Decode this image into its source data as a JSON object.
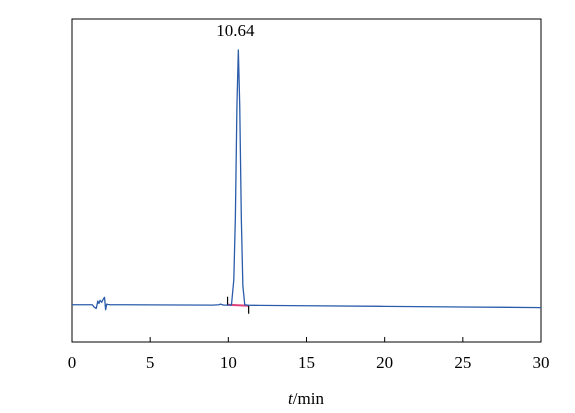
{
  "chart_data": {
    "type": "line",
    "title": "",
    "xlabel_italic": "t",
    "xlabel_rest": "/min",
    "ylabel": "",
    "xlim": [
      0,
      30
    ],
    "x_ticks": [
      0,
      5,
      10,
      15,
      20,
      25,
      30
    ],
    "x_tick_labels": [
      "0",
      "5",
      "10",
      "15",
      "20",
      "25",
      "30"
    ],
    "y_ticks_shown": false,
    "grid": false,
    "legend": "none",
    "series": [
      {
        "color": "#2a5caa",
        "x": [
          0.0,
          1.3,
          1.42,
          1.55,
          1.65,
          1.72,
          1.8,
          1.9,
          2.0,
          2.08,
          2.15,
          2.22,
          2.3,
          2.45,
          2.6,
          5.0,
          9.0,
          9.4,
          9.5,
          9.6,
          9.7,
          9.9,
          10.2,
          10.35,
          10.45,
          10.55,
          10.64,
          10.73,
          10.83,
          10.93,
          11.05,
          11.3,
          12.0,
          15.0,
          20.0,
          25.0,
          30.0
        ],
        "y": [
          0.0,
          0.0,
          -2.0,
          -3.0,
          3.0,
          1.0,
          3.5,
          2.0,
          4.5,
          6.0,
          -4.0,
          0.5,
          0.2,
          0.0,
          0.0,
          -0.1,
          -0.3,
          0.0,
          0.5,
          0.1,
          -0.3,
          -0.3,
          -0.3,
          20.0,
          70.0,
          160.0,
          205.0,
          160.0,
          70.0,
          15.0,
          0.0,
          -0.4,
          -0.5,
          -0.8,
          -1.3,
          -1.8,
          -2.3
        ]
      }
    ],
    "ylim": [
      -30,
      230
    ],
    "annotations": [
      {
        "text": "10.64",
        "x": 10.64,
        "y": 205.0
      }
    ],
    "integration_markers": [
      {
        "x_start": 9.95,
        "x_end": 11.3,
        "color": "#e0407a"
      }
    ]
  }
}
